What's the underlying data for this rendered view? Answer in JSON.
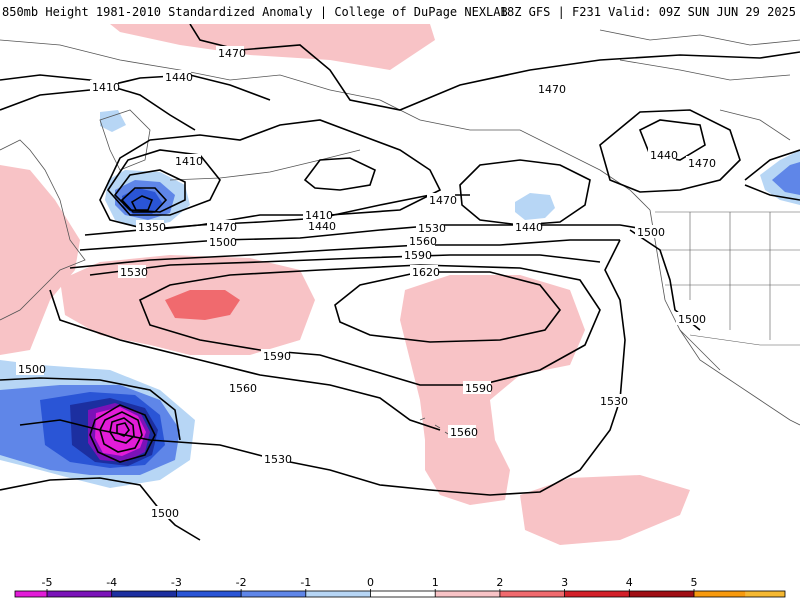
{
  "header": {
    "left_title": "850mb Height 1981-2010 Standardized Anomaly | College of DuPage NEXLAB",
    "right_title": "18Z GFS | F231 Valid: 09Z SUN JUN 29 2025"
  },
  "contours": [
    {
      "id": "c1470-n",
      "label": "1470"
    },
    {
      "id": "c1410-w",
      "label": "1410"
    },
    {
      "id": "c1440-w",
      "label": "1440"
    },
    {
      "id": "c1410-c",
      "label": "1410"
    },
    {
      "id": "c1350",
      "label": "1350"
    },
    {
      "id": "c1410-s",
      "label": "1410"
    },
    {
      "id": "c1440-s",
      "label": "1440"
    },
    {
      "id": "c1470-s",
      "label": "1470"
    },
    {
      "id": "c1500-s",
      "label": "1500"
    },
    {
      "id": "c1530-n",
      "label": "1530"
    },
    {
      "id": "c1560-n",
      "label": "1560"
    },
    {
      "id": "c1590-n",
      "label": "1590"
    },
    {
      "id": "c1620",
      "label": "1620"
    },
    {
      "id": "c1470-e",
      "label": "1470"
    },
    {
      "id": "c1440-gulf",
      "label": "1440"
    },
    {
      "id": "c1440-ne",
      "label": "1440"
    },
    {
      "id": "c1470-ne",
      "label": "1470"
    },
    {
      "id": "c1500-e",
      "label": "1500"
    },
    {
      "id": "c1500-coast",
      "label": "1500"
    },
    {
      "id": "c1530-w",
      "label": "1530"
    },
    {
      "id": "c1590-w",
      "label": "1590"
    },
    {
      "id": "c1590-e",
      "label": "1590"
    },
    {
      "id": "c1560-w",
      "label": "1560"
    },
    {
      "id": "c1560-c",
      "label": "1560"
    },
    {
      "id": "c1530-se",
      "label": "1530"
    },
    {
      "id": "c1530-sw",
      "label": "1530"
    },
    {
      "id": "c1500-sw",
      "label": "1500"
    },
    {
      "id": "c1500-ssw",
      "label": "1500"
    },
    {
      "id": "c1470-top",
      "label": "1470"
    }
  ],
  "legend": {
    "ticks": [
      "-5",
      "-4",
      "-3",
      "-2",
      "-1",
      "0",
      "1",
      "2",
      "3",
      "4",
      "5"
    ],
    "colors": [
      "#e21cd8",
      "#7a12b8",
      "#1c2fa0",
      "#2a55d6",
      "#5f86e8",
      "#b7d6f5",
      "#ffffff",
      "#f8c3c6",
      "#f06a6e",
      "#d3202a",
      "#a00f14",
      "#f79a0e",
      "#f5b832"
    ]
  }
}
